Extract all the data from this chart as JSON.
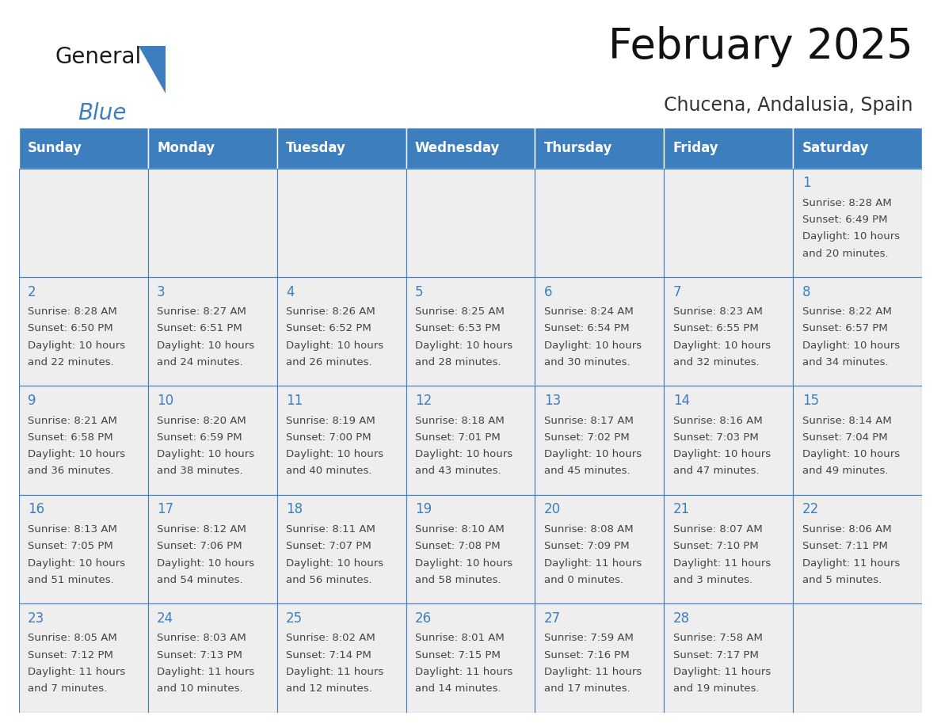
{
  "title": "February 2025",
  "subtitle": "Chucena, Andalusia, Spain",
  "header_color": "#3d7ebf",
  "header_text_color": "#ffffff",
  "cell_bg_even": "#eeeeee",
  "cell_bg_odd": "#ffffff",
  "border_color": "#3d7ebf",
  "day_number_color": "#3d7ebf",
  "text_color": "#444444",
  "weekdays": [
    "Sunday",
    "Monday",
    "Tuesday",
    "Wednesday",
    "Thursday",
    "Friday",
    "Saturday"
  ],
  "days": [
    {
      "day": 1,
      "col": 6,
      "row": 0,
      "sunrise": "8:28 AM",
      "sunset": "6:49 PM",
      "daylight": "10 hours",
      "daylight2": "and 20 minutes."
    },
    {
      "day": 2,
      "col": 0,
      "row": 1,
      "sunrise": "8:28 AM",
      "sunset": "6:50 PM",
      "daylight": "10 hours",
      "daylight2": "and 22 minutes."
    },
    {
      "day": 3,
      "col": 1,
      "row": 1,
      "sunrise": "8:27 AM",
      "sunset": "6:51 PM",
      "daylight": "10 hours",
      "daylight2": "and 24 minutes."
    },
    {
      "day": 4,
      "col": 2,
      "row": 1,
      "sunrise": "8:26 AM",
      "sunset": "6:52 PM",
      "daylight": "10 hours",
      "daylight2": "and 26 minutes."
    },
    {
      "day": 5,
      "col": 3,
      "row": 1,
      "sunrise": "8:25 AM",
      "sunset": "6:53 PM",
      "daylight": "10 hours",
      "daylight2": "and 28 minutes."
    },
    {
      "day": 6,
      "col": 4,
      "row": 1,
      "sunrise": "8:24 AM",
      "sunset": "6:54 PM",
      "daylight": "10 hours",
      "daylight2": "and 30 minutes."
    },
    {
      "day": 7,
      "col": 5,
      "row": 1,
      "sunrise": "8:23 AM",
      "sunset": "6:55 PM",
      "daylight": "10 hours",
      "daylight2": "and 32 minutes."
    },
    {
      "day": 8,
      "col": 6,
      "row": 1,
      "sunrise": "8:22 AM",
      "sunset": "6:57 PM",
      "daylight": "10 hours",
      "daylight2": "and 34 minutes."
    },
    {
      "day": 9,
      "col": 0,
      "row": 2,
      "sunrise": "8:21 AM",
      "sunset": "6:58 PM",
      "daylight": "10 hours",
      "daylight2": "and 36 minutes."
    },
    {
      "day": 10,
      "col": 1,
      "row": 2,
      "sunrise": "8:20 AM",
      "sunset": "6:59 PM",
      "daylight": "10 hours",
      "daylight2": "and 38 minutes."
    },
    {
      "day": 11,
      "col": 2,
      "row": 2,
      "sunrise": "8:19 AM",
      "sunset": "7:00 PM",
      "daylight": "10 hours",
      "daylight2": "and 40 minutes."
    },
    {
      "day": 12,
      "col": 3,
      "row": 2,
      "sunrise": "8:18 AM",
      "sunset": "7:01 PM",
      "daylight": "10 hours",
      "daylight2": "and 43 minutes."
    },
    {
      "day": 13,
      "col": 4,
      "row": 2,
      "sunrise": "8:17 AM",
      "sunset": "7:02 PM",
      "daylight": "10 hours",
      "daylight2": "and 45 minutes."
    },
    {
      "day": 14,
      "col": 5,
      "row": 2,
      "sunrise": "8:16 AM",
      "sunset": "7:03 PM",
      "daylight": "10 hours",
      "daylight2": "and 47 minutes."
    },
    {
      "day": 15,
      "col": 6,
      "row": 2,
      "sunrise": "8:14 AM",
      "sunset": "7:04 PM",
      "daylight": "10 hours",
      "daylight2": "and 49 minutes."
    },
    {
      "day": 16,
      "col": 0,
      "row": 3,
      "sunrise": "8:13 AM",
      "sunset": "7:05 PM",
      "daylight": "10 hours",
      "daylight2": "and 51 minutes."
    },
    {
      "day": 17,
      "col": 1,
      "row": 3,
      "sunrise": "8:12 AM",
      "sunset": "7:06 PM",
      "daylight": "10 hours",
      "daylight2": "and 54 minutes."
    },
    {
      "day": 18,
      "col": 2,
      "row": 3,
      "sunrise": "8:11 AM",
      "sunset": "7:07 PM",
      "daylight": "10 hours",
      "daylight2": "and 56 minutes."
    },
    {
      "day": 19,
      "col": 3,
      "row": 3,
      "sunrise": "8:10 AM",
      "sunset": "7:08 PM",
      "daylight": "10 hours",
      "daylight2": "and 58 minutes."
    },
    {
      "day": 20,
      "col": 4,
      "row": 3,
      "sunrise": "8:08 AM",
      "sunset": "7:09 PM",
      "daylight": "11 hours",
      "daylight2": "and 0 minutes."
    },
    {
      "day": 21,
      "col": 5,
      "row": 3,
      "sunrise": "8:07 AM",
      "sunset": "7:10 PM",
      "daylight": "11 hours",
      "daylight2": "and 3 minutes."
    },
    {
      "day": 22,
      "col": 6,
      "row": 3,
      "sunrise": "8:06 AM",
      "sunset": "7:11 PM",
      "daylight": "11 hours",
      "daylight2": "and 5 minutes."
    },
    {
      "day": 23,
      "col": 0,
      "row": 4,
      "sunrise": "8:05 AM",
      "sunset": "7:12 PM",
      "daylight": "11 hours",
      "daylight2": "and 7 minutes."
    },
    {
      "day": 24,
      "col": 1,
      "row": 4,
      "sunrise": "8:03 AM",
      "sunset": "7:13 PM",
      "daylight": "11 hours",
      "daylight2": "and 10 minutes."
    },
    {
      "day": 25,
      "col": 2,
      "row": 4,
      "sunrise": "8:02 AM",
      "sunset": "7:14 PM",
      "daylight": "11 hours",
      "daylight2": "and 12 minutes."
    },
    {
      "day": 26,
      "col": 3,
      "row": 4,
      "sunrise": "8:01 AM",
      "sunset": "7:15 PM",
      "daylight": "11 hours",
      "daylight2": "and 14 minutes."
    },
    {
      "day": 27,
      "col": 4,
      "row": 4,
      "sunrise": "7:59 AM",
      "sunset": "7:16 PM",
      "daylight": "11 hours",
      "daylight2": "and 17 minutes."
    },
    {
      "day": 28,
      "col": 5,
      "row": 4,
      "sunrise": "7:58 AM",
      "sunset": "7:17 PM",
      "daylight": "11 hours",
      "daylight2": "and 19 minutes."
    }
  ],
  "num_rows": 5,
  "num_cols": 7,
  "title_fontsize": 38,
  "subtitle_fontsize": 17,
  "header_fontsize": 12,
  "day_num_fontsize": 12,
  "cell_text_fontsize": 9.5
}
